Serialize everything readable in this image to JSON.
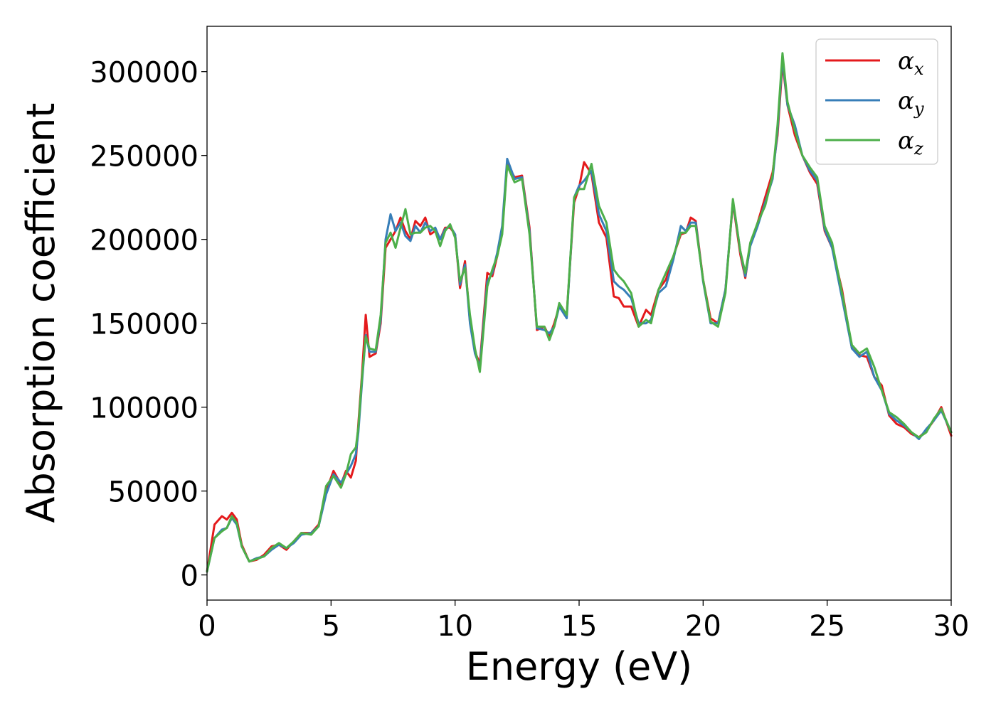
{
  "chart_data": {
    "type": "line",
    "xlabel": "Energy (eV)",
    "ylabel": "Absorption coefficient",
    "xlim": [
      0,
      30
    ],
    "ylim": [
      -15000,
      327000
    ],
    "xticks": [
      0,
      5,
      10,
      15,
      20,
      25,
      30
    ],
    "xtick_labels": [
      "0",
      "5",
      "10",
      "15",
      "20",
      "25",
      "30"
    ],
    "yticks": [
      0,
      50000,
      100000,
      150000,
      200000,
      250000,
      300000
    ],
    "ytick_labels": [
      "0",
      "50000",
      "100000",
      "150000",
      "200000",
      "250000",
      "300000"
    ],
    "grid": false,
    "legend": "top-right",
    "series": [
      {
        "name": "αx",
        "base": "α",
        "sub": "x",
        "color": "#e41a1c",
        "x": [
          0,
          0.3,
          0.6,
          0.8,
          1.0,
          1.2,
          1.4,
          1.7,
          2.0,
          2.3,
          2.6,
          2.9,
          3.2,
          3.5,
          3.8,
          4.2,
          4.5,
          4.8,
          5.1,
          5.4,
          5.6,
          5.8,
          6.0,
          6.1,
          6.25,
          6.4,
          6.55,
          6.8,
          7.0,
          7.2,
          7.4,
          7.6,
          7.8,
          8.0,
          8.2,
          8.4,
          8.6,
          8.8,
          9.0,
          9.2,
          9.4,
          9.6,
          9.8,
          10.0,
          10.2,
          10.4,
          10.6,
          10.8,
          11.0,
          11.3,
          11.5,
          11.7,
          11.9,
          12.1,
          12.4,
          12.7,
          13.0,
          13.3,
          13.6,
          13.8,
          14.0,
          14.2,
          14.5,
          14.8,
          15.0,
          15.2,
          15.5,
          15.8,
          16.1,
          16.4,
          16.6,
          16.8,
          17.1,
          17.4,
          17.7,
          17.9,
          18.2,
          18.5,
          18.8,
          19.1,
          19.3,
          19.5,
          19.7,
          20.0,
          20.3,
          20.6,
          20.9,
          21.2,
          21.5,
          21.7,
          21.9,
          22.2,
          22.5,
          22.8,
          23.0,
          23.2,
          23.4,
          23.7,
          24.0,
          24.3,
          24.6,
          24.9,
          25.2,
          25.6,
          26.0,
          26.3,
          26.6,
          26.9,
          27.2,
          27.5,
          27.8,
          28.1,
          28.4,
          28.7,
          29.0,
          29.3,
          29.6,
          30.0
        ],
        "y": [
          2000,
          30000,
          35000,
          33000,
          37000,
          33000,
          18000,
          8000,
          9000,
          12000,
          17000,
          18000,
          15000,
          20000,
          25000,
          25000,
          30000,
          50000,
          62000,
          54000,
          62000,
          58000,
          68000,
          90000,
          120000,
          155000,
          130000,
          132000,
          150000,
          195000,
          200000,
          205000,
          213000,
          205000,
          200000,
          211000,
          208000,
          213000,
          203000,
          205000,
          200000,
          207000,
          207000,
          203000,
          171000,
          187000,
          151000,
          133000,
          126000,
          180000,
          178000,
          190000,
          205000,
          245000,
          237000,
          238000,
          207000,
          146000,
          148000,
          142000,
          150000,
          160000,
          155000,
          222000,
          231000,
          246000,
          239000,
          210000,
          201000,
          166000,
          165000,
          160000,
          160000,
          148000,
          158000,
          155000,
          170000,
          176000,
          190000,
          203000,
          204000,
          213000,
          211000,
          176000,
          153000,
          150000,
          170000,
          222000,
          191000,
          177000,
          197000,
          210000,
          225000,
          240000,
          262000,
          305000,
          280000,
          262000,
          250000,
          240000,
          233000,
          205000,
          195000,
          170000,
          135000,
          131000,
          130000,
          118000,
          113000,
          95000,
          90000,
          88000,
          84000,
          82000,
          86000,
          92000,
          100000,
          83000
        ]
      },
      {
        "name": "αy",
        "base": "α",
        "sub": "y",
        "color": "#377eb8",
        "x": [
          0,
          0.3,
          0.6,
          0.8,
          1.0,
          1.2,
          1.4,
          1.7,
          2.0,
          2.3,
          2.6,
          2.9,
          3.2,
          3.5,
          3.8,
          4.2,
          4.5,
          4.8,
          5.1,
          5.4,
          5.6,
          5.8,
          6.0,
          6.1,
          6.25,
          6.4,
          6.55,
          6.8,
          7.0,
          7.2,
          7.4,
          7.6,
          7.8,
          8.0,
          8.2,
          8.4,
          8.6,
          8.8,
          9.0,
          9.2,
          9.4,
          9.6,
          9.8,
          10.0,
          10.2,
          10.4,
          10.6,
          10.8,
          11.0,
          11.3,
          11.5,
          11.7,
          11.9,
          12.1,
          12.4,
          12.7,
          13.0,
          13.3,
          13.6,
          13.8,
          14.0,
          14.2,
          14.5,
          14.8,
          15.0,
          15.2,
          15.5,
          15.8,
          16.1,
          16.4,
          16.6,
          16.8,
          17.1,
          17.4,
          17.7,
          17.9,
          18.2,
          18.5,
          18.8,
          19.1,
          19.3,
          19.5,
          19.7,
          20.0,
          20.3,
          20.6,
          20.9,
          21.2,
          21.5,
          21.7,
          21.9,
          22.2,
          22.5,
          22.8,
          23.0,
          23.2,
          23.4,
          23.7,
          24.0,
          24.3,
          24.6,
          24.9,
          25.2,
          25.6,
          26.0,
          26.3,
          26.6,
          26.9,
          27.2,
          27.5,
          27.8,
          28.1,
          28.4,
          28.7,
          29.0,
          29.3,
          29.6,
          30.0
        ],
        "y": [
          2000,
          22000,
          27000,
          28000,
          34000,
          30000,
          17000,
          8000,
          10000,
          11000,
          15000,
          18000,
          16000,
          19000,
          24000,
          25000,
          29000,
          48000,
          60000,
          55000,
          60000,
          65000,
          72000,
          85000,
          115000,
          143000,
          133000,
          133000,
          152000,
          200000,
          215000,
          205000,
          210000,
          202000,
          199000,
          208000,
          204000,
          210000,
          205000,
          207000,
          200000,
          206000,
          208000,
          203000,
          173000,
          185000,
          150000,
          132000,
          124000,
          175000,
          180000,
          192000,
          208000,
          248000,
          236000,
          237000,
          205000,
          147000,
          146000,
          144000,
          148000,
          160000,
          153000,
          225000,
          232000,
          235000,
          241000,
          215000,
          205000,
          175000,
          172000,
          170000,
          165000,
          150000,
          150000,
          152000,
          168000,
          172000,
          188000,
          208000,
          205000,
          210000,
          210000,
          175000,
          150000,
          150000,
          170000,
          223000,
          193000,
          178000,
          196000,
          208000,
          222000,
          236000,
          265000,
          308000,
          280000,
          268000,
          250000,
          241000,
          235000,
          206000,
          195000,
          165000,
          135000,
          130000,
          133000,
          118000,
          110000,
          96000,
          92000,
          89000,
          85000,
          81000,
          87000,
          92000,
          98000,
          85000
        ]
      },
      {
        "name": "αz",
        "base": "α",
        "sub": "z",
        "color": "#4daf4a",
        "x": [
          0,
          0.3,
          0.6,
          0.8,
          1.0,
          1.2,
          1.4,
          1.7,
          2.0,
          2.3,
          2.6,
          2.9,
          3.2,
          3.5,
          3.8,
          4.2,
          4.5,
          4.8,
          5.1,
          5.4,
          5.6,
          5.8,
          6.0,
          6.1,
          6.25,
          6.4,
          6.55,
          6.8,
          7.0,
          7.2,
          7.4,
          7.6,
          7.8,
          8.0,
          8.2,
          8.4,
          8.6,
          8.8,
          9.0,
          9.2,
          9.4,
          9.6,
          9.8,
          10.0,
          10.2,
          10.4,
          10.6,
          10.8,
          11.0,
          11.3,
          11.5,
          11.7,
          11.9,
          12.1,
          12.4,
          12.7,
          13.0,
          13.3,
          13.6,
          13.8,
          14.0,
          14.2,
          14.5,
          14.8,
          15.0,
          15.2,
          15.5,
          15.8,
          16.1,
          16.4,
          16.6,
          16.8,
          17.1,
          17.4,
          17.7,
          17.9,
          18.2,
          18.5,
          18.8,
          19.1,
          19.3,
          19.5,
          19.7,
          20.0,
          20.3,
          20.6,
          20.9,
          21.2,
          21.5,
          21.7,
          21.9,
          22.2,
          22.5,
          22.8,
          23.0,
          23.2,
          23.4,
          23.7,
          24.0,
          24.3,
          24.6,
          24.9,
          25.2,
          25.6,
          26.0,
          26.3,
          26.6,
          26.9,
          27.2,
          27.5,
          27.8,
          28.1,
          28.4,
          28.7,
          29.0,
          29.3,
          29.6,
          30.0
        ],
        "y": [
          2000,
          22000,
          26000,
          28000,
          35000,
          31000,
          17000,
          8000,
          9500,
          11000,
          16000,
          19000,
          16000,
          20000,
          25000,
          24000,
          29000,
          53000,
          59000,
          52000,
          60000,
          72000,
          76000,
          88000,
          118000,
          142000,
          135000,
          134000,
          155000,
          198000,
          204000,
          195000,
          207000,
          218000,
          203000,
          204000,
          204000,
          207000,
          208000,
          205000,
          196000,
          205000,
          209000,
          201000,
          175000,
          183000,
          155000,
          135000,
          121000,
          172000,
          182000,
          190000,
          203000,
          244000,
          234000,
          236000,
          203000,
          148000,
          148000,
          140000,
          148000,
          162000,
          155000,
          225000,
          230000,
          230000,
          245000,
          220000,
          210000,
          182000,
          178000,
          175000,
          168000,
          148000,
          152000,
          150000,
          170000,
          180000,
          190000,
          204000,
          204000,
          208000,
          208000,
          176000,
          151000,
          148000,
          168000,
          224000,
          193000,
          180000,
          198000,
          210000,
          220000,
          238000,
          268000,
          311000,
          282000,
          265000,
          250000,
          243000,
          237000,
          208000,
          198000,
          168000,
          137000,
          132000,
          135000,
          124000,
          110000,
          97000,
          94000,
          90000,
          85000,
          82000,
          85000,
          93000,
          99000,
          85000
        ]
      }
    ]
  }
}
